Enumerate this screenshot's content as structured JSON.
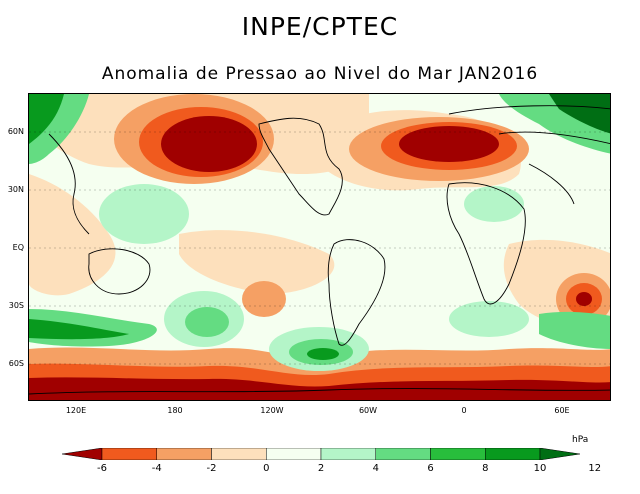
{
  "header": {
    "title": "INPE/CPTEC",
    "subtitle": "Anomalia de Pressao ao Nivel do Mar JAN2016"
  },
  "map": {
    "lat_labels": [
      "60N",
      "30N",
      "EQ",
      "30S",
      "60S"
    ],
    "lon_labels": [
      "120E",
      "180",
      "120W",
      "60W",
      "0",
      "60E"
    ]
  },
  "colorbar": {
    "unit": "hPa",
    "ticks": [
      "-6",
      "-4",
      "-2",
      "0",
      "2",
      "4",
      "6",
      "8",
      "10",
      "12"
    ],
    "colors": [
      "#a00000",
      "#f05a1e",
      "#f5a064",
      "#fde0bc",
      "#f5fff0",
      "#b4f5c8",
      "#64dc82",
      "#28be3c",
      "#089a1e",
      "#006e14"
    ]
  }
}
